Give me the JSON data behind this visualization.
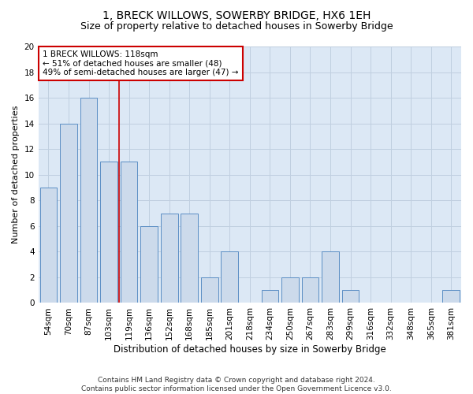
{
  "title": "1, BRECK WILLOWS, SOWERBY BRIDGE, HX6 1EH",
  "subtitle": "Size of property relative to detached houses in Sowerby Bridge",
  "xlabel": "Distribution of detached houses by size in Sowerby Bridge",
  "ylabel": "Number of detached properties",
  "categories": [
    "54sqm",
    "70sqm",
    "87sqm",
    "103sqm",
    "119sqm",
    "136sqm",
    "152sqm",
    "168sqm",
    "185sqm",
    "201sqm",
    "218sqm",
    "234sqm",
    "250sqm",
    "267sqm",
    "283sqm",
    "299sqm",
    "316sqm",
    "332sqm",
    "348sqm",
    "365sqm",
    "381sqm"
  ],
  "values": [
    9,
    14,
    16,
    11,
    11,
    6,
    7,
    7,
    2,
    4,
    0,
    1,
    2,
    2,
    4,
    1,
    0,
    0,
    0,
    0,
    1
  ],
  "bar_color": "#ccdaeb",
  "bar_edgecolor": "#5b8ec4",
  "vline_x_index": 4,
  "vline_color": "#cc0000",
  "annotation_text": "1 BRECK WILLOWS: 118sqm\n← 51% of detached houses are smaller (48)\n49% of semi-detached houses are larger (47) →",
  "annotation_box_edgecolor": "#cc0000",
  "ylim": [
    0,
    20
  ],
  "yticks": [
    0,
    2,
    4,
    6,
    8,
    10,
    12,
    14,
    16,
    18,
    20
  ],
  "grid_color": "#c0cfe0",
  "background_color": "#dce8f5",
  "footer": "Contains HM Land Registry data © Crown copyright and database right 2024.\nContains public sector information licensed under the Open Government Licence v3.0.",
  "title_fontsize": 10,
  "subtitle_fontsize": 9,
  "xlabel_fontsize": 8.5,
  "ylabel_fontsize": 8,
  "tick_fontsize": 7.5,
  "annotation_fontsize": 7.5,
  "footer_fontsize": 6.5
}
